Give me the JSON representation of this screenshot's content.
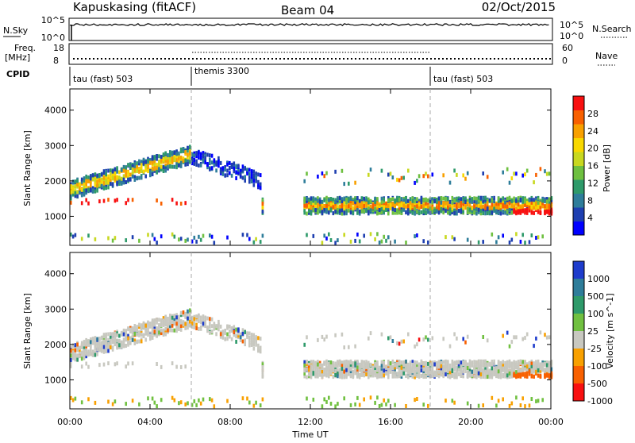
{
  "header": {
    "radar": "Kapuskasing (fitACF)",
    "beam": "Beam 04",
    "date": "02/Oct/2015"
  },
  "status_strip": {
    "nsky_label": "N.Sky",
    "nsky_ticks": [
      "10^5",
      "10^0"
    ],
    "nsearch_label": "N.Search",
    "nsearch_ticks": [
      "10^5",
      "10^0"
    ],
    "freq_label": "Freq.",
    "freq_unit": "[MHz]",
    "freq_ticks": [
      "18",
      "8"
    ],
    "nave_label": "Nave",
    "nave_ticks": [
      "60",
      "0"
    ],
    "cpid_label": "CPID"
  },
  "cpid_segments": [
    {
      "name": "tau (fast) 503",
      "start_hour": 0
    },
    {
      "name": "themis 3300",
      "start_hour": 6
    },
    {
      "name": "tau (fast) 503",
      "start_hour": 18
    }
  ],
  "time_axis": {
    "label": "Time UT",
    "ticks": [
      "00:00",
      "04:00",
      "08:00",
      "12:00",
      "16:00",
      "20:00",
      "00:00"
    ],
    "range_hours": [
      0,
      24
    ],
    "tick_step_hours": 4
  },
  "chart_data": [
    {
      "type": "heatmap",
      "ylabel": "Slant Range [km]",
      "y_ticks": [
        "1000",
        "2000",
        "3000",
        "4000"
      ],
      "ylim": [
        180,
        4600
      ],
      "xlim": [
        0,
        24
      ],
      "colorbar": {
        "label": "Power [dB]",
        "ticks": [
          "4",
          "8",
          "12",
          "16",
          "20",
          "24",
          "28"
        ],
        "range": [
          0,
          32
        ],
        "colors": [
          "#0000ff",
          "#1e3fb0",
          "#2e7d9a",
          "#2e9a6a",
          "#6ec040",
          "#c8d820",
          "#f8d800",
          "#f8a000",
          "#f86000",
          "#f81010"
        ]
      },
      "scatter_regions": [
        {
          "from_hour": 0.0,
          "to_hour": 6.0,
          "center_km": "1750→2750",
          "value_dB": "8–28"
        },
        {
          "from_hour": 6.0,
          "to_hour": 9.5,
          "center_km": "2700→2000",
          "value_dB": "4–12"
        },
        {
          "from_hour": 11.5,
          "to_hour": 24.0,
          "center_km": "1200–1800",
          "value_dB": "4–28"
        }
      ]
    },
    {
      "type": "heatmap",
      "ylabel": "Slant Range [km]",
      "y_ticks": [
        "1000",
        "2000",
        "3000",
        "4000"
      ],
      "ylim": [
        180,
        4600
      ],
      "xlim": [
        0,
        24
      ],
      "colorbar": {
        "label": "Velocity [m s^-1]",
        "ticks": [
          "1000",
          "500",
          "100",
          "25",
          "-25",
          "-100",
          "-500",
          "-1000"
        ],
        "colors": [
          "#1e3ccc",
          "#2e7d9a",
          "#2e9a6a",
          "#70c040",
          "#c8c8c0",
          "#f8a000",
          "#f86000",
          "#f81010"
        ]
      }
    }
  ]
}
